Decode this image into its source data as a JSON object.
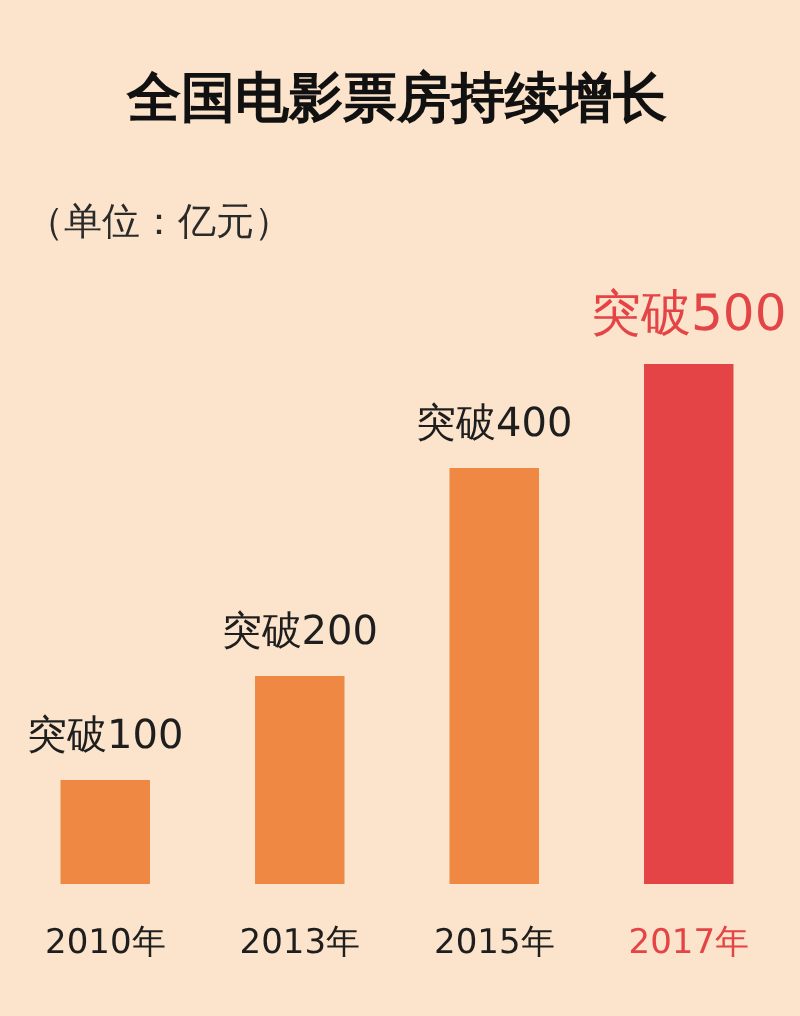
{
  "chart_data": {
    "type": "bar",
    "title": "全国电影票房持续增长",
    "subtitle": "（单位：亿元）",
    "categories": [
      "2010年",
      "2013年",
      "2015年",
      "2017年"
    ],
    "values": [
      100,
      200,
      400,
      500
    ],
    "value_labels": [
      "突破100",
      "突破200",
      "突破400",
      "突破500"
    ],
    "colors": [
      "#ef8843",
      "#ef8843",
      "#ef8843",
      "#e54447"
    ],
    "ylim": [
      0,
      500
    ],
    "tick_labels": "x"
  }
}
